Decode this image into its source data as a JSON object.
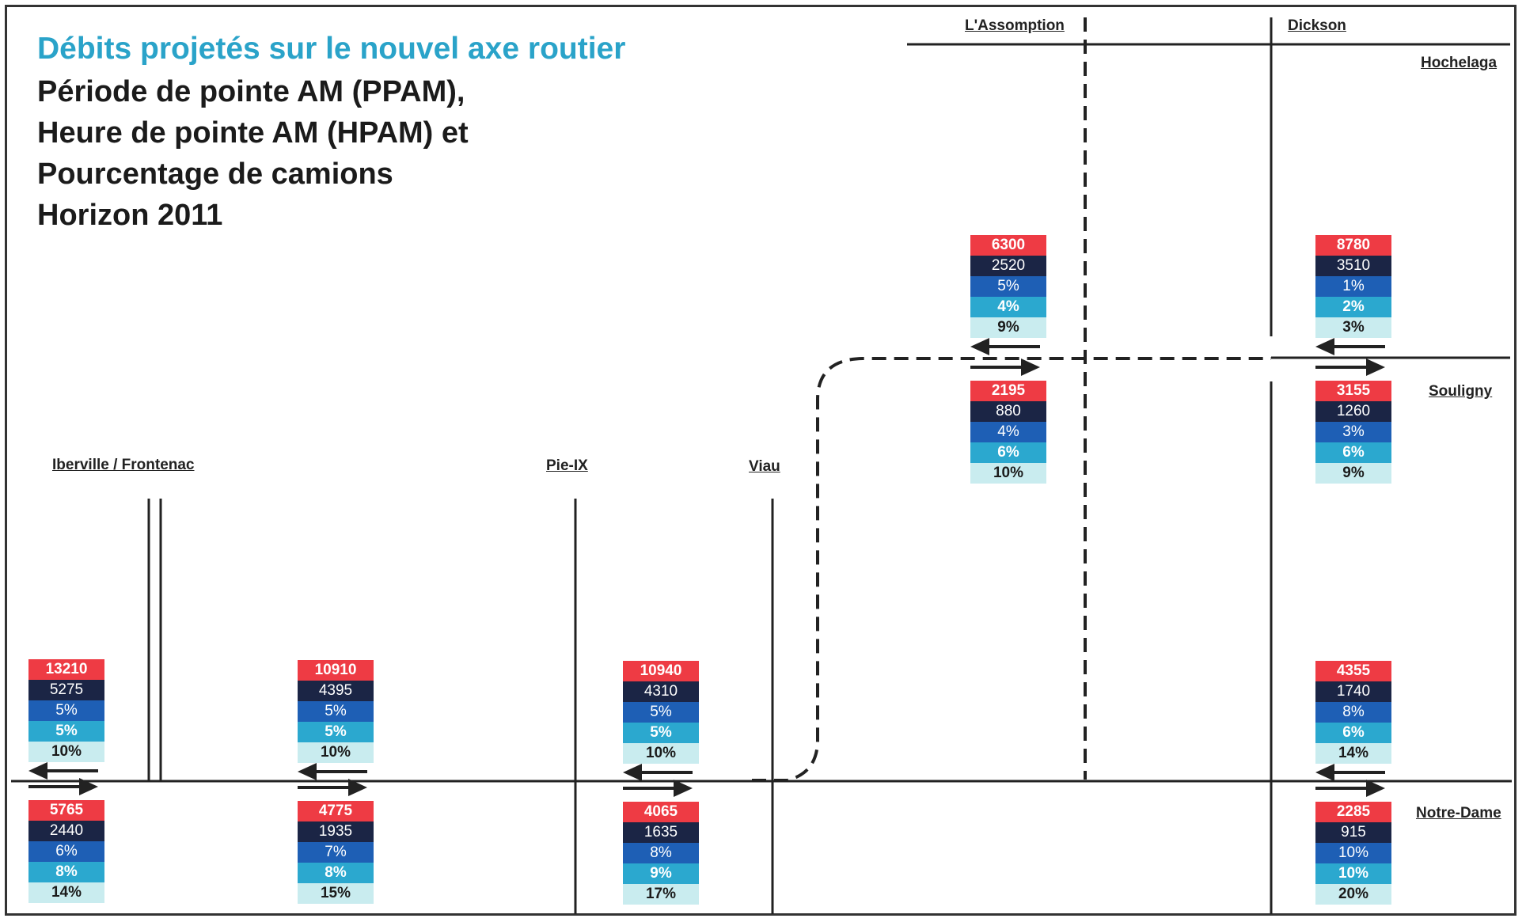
{
  "title": {
    "main": "Débits projetés sur le nouvel axe routier",
    "lines": [
      "Période de pointe AM (PPAM),",
      "Heure de pointe AM (HPAM) et",
      "Pourcentage de camions",
      "Horizon 2011"
    ]
  },
  "colors": {
    "title_accent": "#2aa3c9",
    "ppam": "#ee3b44",
    "hpam": "#1b2545",
    "pct1": "#1e5fb5",
    "pct2": "#2ba8cf",
    "pct3": "#c9ecef",
    "line": "#222222"
  },
  "streets": {
    "iberville": "Iberville / Frontenac",
    "pieix": "Pie-IX",
    "viau": "Viau",
    "assomption": "L'Assomption",
    "dickson": "Dickson",
    "hochelaga": "Hochelaga",
    "souligny": "Souligny",
    "notredame": "Notre-Dame"
  },
  "boxes": {
    "iberville_w": {
      "ppam": "13210",
      "hpam": "5275",
      "p1": "5%",
      "p2": "5%",
      "p3": "10%",
      "direction": "west"
    },
    "iberville_e": {
      "ppam": "5765",
      "hpam": "2440",
      "p1": "6%",
      "p2": "8%",
      "p3": "14%",
      "direction": "east"
    },
    "mid_w": {
      "ppam": "10910",
      "hpam": "4395",
      "p1": "5%",
      "p2": "5%",
      "p3": "10%",
      "direction": "west"
    },
    "mid_e": {
      "ppam": "4775",
      "hpam": "1935",
      "p1": "7%",
      "p2": "8%",
      "p3": "15%",
      "direction": "east"
    },
    "pieix_w": {
      "ppam": "10940",
      "hpam": "4310",
      "p1": "5%",
      "p2": "5%",
      "p3": "10%",
      "direction": "west"
    },
    "pieix_e": {
      "ppam": "4065",
      "hpam": "1635",
      "p1": "8%",
      "p2": "9%",
      "p3": "17%",
      "direction": "east"
    },
    "assomption_w": {
      "ppam": "6300",
      "hpam": "2520",
      "p1": "5%",
      "p2": "4%",
      "p3": "9%",
      "direction": "west"
    },
    "assomption_e": {
      "ppam": "2195",
      "hpam": "880",
      "p1": "4%",
      "p2": "6%",
      "p3": "10%",
      "direction": "east"
    },
    "dickson_w": {
      "ppam": "8780",
      "hpam": "3510",
      "p1": "1%",
      "p2": "2%",
      "p3": "3%",
      "direction": "west"
    },
    "dickson_e": {
      "ppam": "3155",
      "hpam": "1260",
      "p1": "3%",
      "p2": "6%",
      "p3": "9%",
      "direction": "east"
    },
    "notredame_w": {
      "ppam": "4355",
      "hpam": "1740",
      "p1": "8%",
      "p2": "6%",
      "p3": "14%",
      "direction": "west"
    },
    "notredame_e": {
      "ppam": "2285",
      "hpam": "915",
      "p1": "10%",
      "p2": "10%",
      "p3": "20%",
      "direction": "east"
    }
  }
}
